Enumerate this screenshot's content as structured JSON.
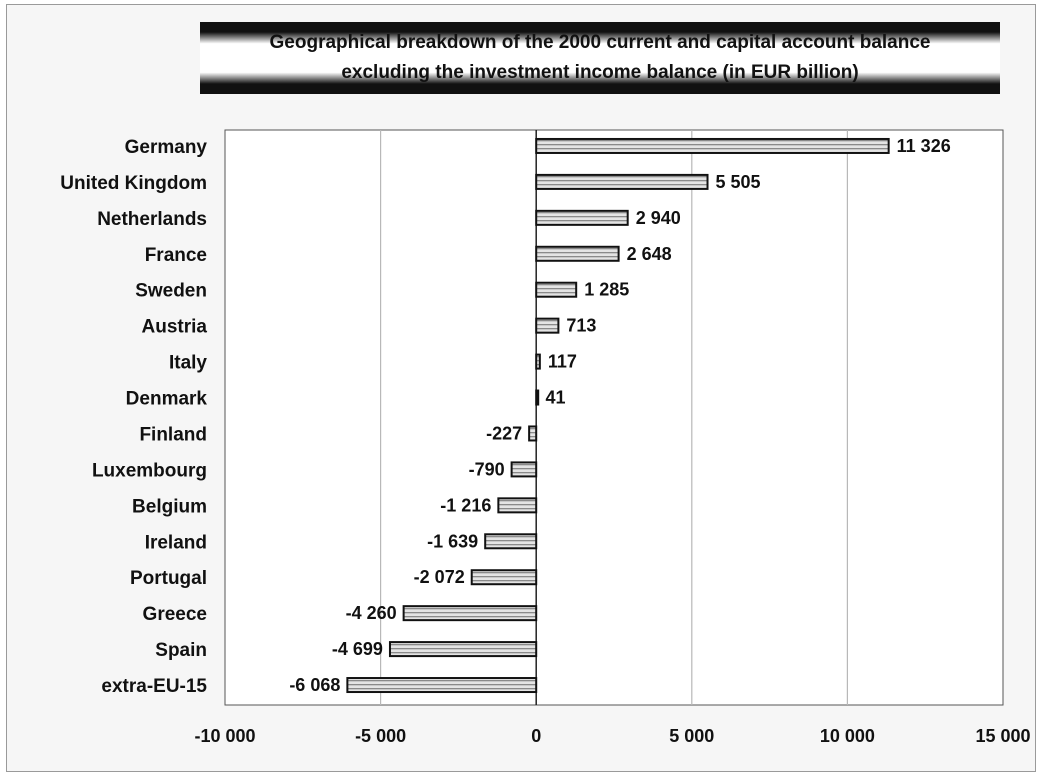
{
  "chart_data": {
    "type": "bar",
    "orientation": "horizontal",
    "title": "Geographical breakdown of the 2000 current and capital account balance excluding the investment income balance (in EUR billion)",
    "title_lines": [
      "Geographical breakdown of the 2000 current and capital account balance",
      "excluding the investment income balance (in EUR billion)"
    ],
    "categories": [
      "Germany",
      "United Kingdom",
      "Netherlands",
      "France",
      "Sweden",
      "Austria",
      "Italy",
      "Denmark",
      "Finland",
      "Luxembourg",
      "Belgium",
      "Ireland",
      "Portugal",
      "Greece",
      "Spain",
      "extra-EU-15"
    ],
    "values": [
      11326,
      5505,
      2940,
      2648,
      1285,
      713,
      117,
      41,
      -227,
      -790,
      -1216,
      -1639,
      -2072,
      -4260,
      -4699,
      -6068
    ],
    "value_labels": [
      "11 326",
      "5 505",
      "2 940",
      "2 648",
      "1 285",
      "713",
      "117",
      "41",
      "-227",
      "-790",
      "-1 216",
      "-1 639",
      "-2 072",
      "-4 260",
      "-4 699",
      "-6 068"
    ],
    "xlim": [
      -10000,
      15000
    ],
    "xticks": [
      -10000,
      -5000,
      0,
      5000,
      10000,
      15000
    ],
    "xtick_labels": [
      "-10 000",
      "-5 000",
      "0",
      "5 000",
      "10 000",
      "15 000"
    ],
    "xlabel": "",
    "ylabel": "",
    "grid": true,
    "legend": "none",
    "bar_color": "#bdbdbd",
    "bar_edge_color": "#111111"
  }
}
